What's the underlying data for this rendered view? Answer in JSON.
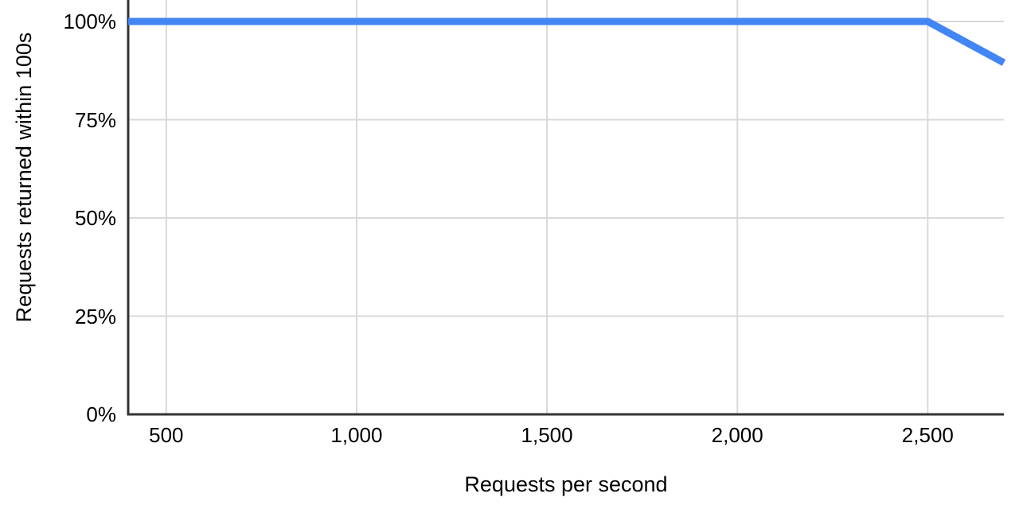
{
  "chart_data": {
    "type": "line",
    "title": "",
    "xlabel": "Requests per second",
    "ylabel": "Requests returned within 100s",
    "series": [
      {
        "name": "Requests returned within 100s",
        "x": [
          400,
          2500,
          2700
        ],
        "y_percent": [
          100,
          100,
          89.5
        ]
      }
    ],
    "xlim": [
      400,
      2700
    ],
    "ylim_percent": [
      0,
      100
    ],
    "x_ticks": [
      {
        "value": 500,
        "label": "500"
      },
      {
        "value": 1000,
        "label": "1,000"
      },
      {
        "value": 1500,
        "label": "1,500"
      },
      {
        "value": 2000,
        "label": "2,000"
      },
      {
        "value": 2500,
        "label": "2,500"
      }
    ],
    "y_ticks": [
      {
        "value": 0,
        "label": "0%"
      },
      {
        "value": 25,
        "label": "25%"
      },
      {
        "value": 50,
        "label": "50%"
      },
      {
        "value": 75,
        "label": "75%"
      },
      {
        "value": 100,
        "label": "100%"
      }
    ],
    "grid": true,
    "legend_position": "none",
    "colors": {
      "line": "#4285f4",
      "gridline": "#d9d9d9",
      "axis": "#333333",
      "text": "#000000",
      "background": "#ffffff"
    }
  }
}
